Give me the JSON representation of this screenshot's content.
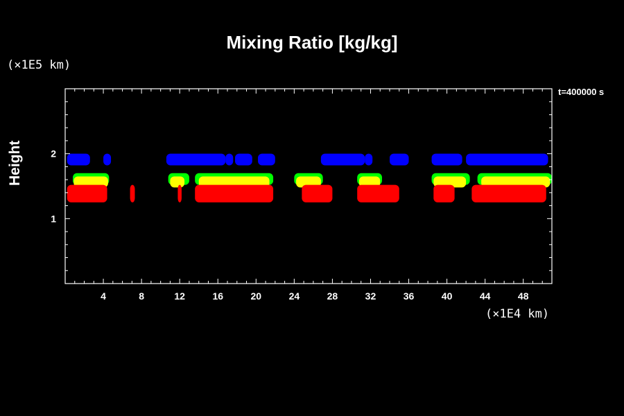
{
  "chart_data": {
    "type": "heatmap",
    "title": "Mixing Ratio [kg/kg]",
    "time_label": "t=400000 s",
    "xlabel": "",
    "ylabel": "Height",
    "x_unit": "(×1E4 km)",
    "y_unit": "(×1E5 km)",
    "xlim": [
      0,
      51
    ],
    "ylim": [
      0,
      3
    ],
    "x_ticks": [
      4,
      8,
      12,
      16,
      20,
      24,
      28,
      32,
      36,
      40,
      44,
      48
    ],
    "y_ticks": [
      1,
      2
    ],
    "colors": {
      "blue": "#0000ff",
      "green": "#00ff00",
      "yellow": "#ffff00",
      "red": "#ff0000",
      "background": "#000000",
      "axes": "#ffffff"
    },
    "bands": [
      {
        "color": "blue",
        "y": [
          1.82,
          2.0
        ],
        "segments": [
          [
            0.2,
            2.6
          ],
          [
            4,
            4.8
          ],
          [
            10.6,
            16.8
          ],
          [
            16.8,
            17.6
          ],
          [
            17.8,
            19.6
          ],
          [
            20.2,
            22
          ],
          [
            26.8,
            31.4
          ],
          [
            31.4,
            32.2
          ],
          [
            34,
            36
          ],
          [
            38.4,
            41.6
          ],
          [
            42,
            50.6
          ]
        ]
      },
      {
        "color": "green",
        "y": [
          1.52,
          1.7
        ],
        "segments": [
          [
            0.8,
            4.6
          ],
          [
            10.8,
            13
          ],
          [
            13.6,
            21.8
          ],
          [
            24,
            27
          ],
          [
            30.6,
            33.2
          ],
          [
            38.4,
            42.4
          ],
          [
            43.2,
            51
          ]
        ]
      },
      {
        "color": "yellow",
        "y": [
          1.48,
          1.65
        ],
        "segments": [
          [
            0.9,
            4.5
          ],
          [
            11,
            12.5
          ],
          [
            14,
            21.4
          ],
          [
            24.2,
            26.8
          ],
          [
            30.8,
            33
          ],
          [
            38.6,
            42
          ],
          [
            43.6,
            50.8
          ]
        ]
      },
      {
        "color": "red",
        "y": [
          1.25,
          1.52
        ],
        "segments": [
          [
            0.2,
            4.4
          ],
          [
            6.8,
            7.3
          ],
          [
            11.8,
            12.2
          ],
          [
            13.6,
            21.8
          ],
          [
            24.8,
            28
          ],
          [
            30.6,
            35
          ],
          [
            38.6,
            40.8
          ],
          [
            42.6,
            50.4
          ]
        ]
      }
    ]
  }
}
